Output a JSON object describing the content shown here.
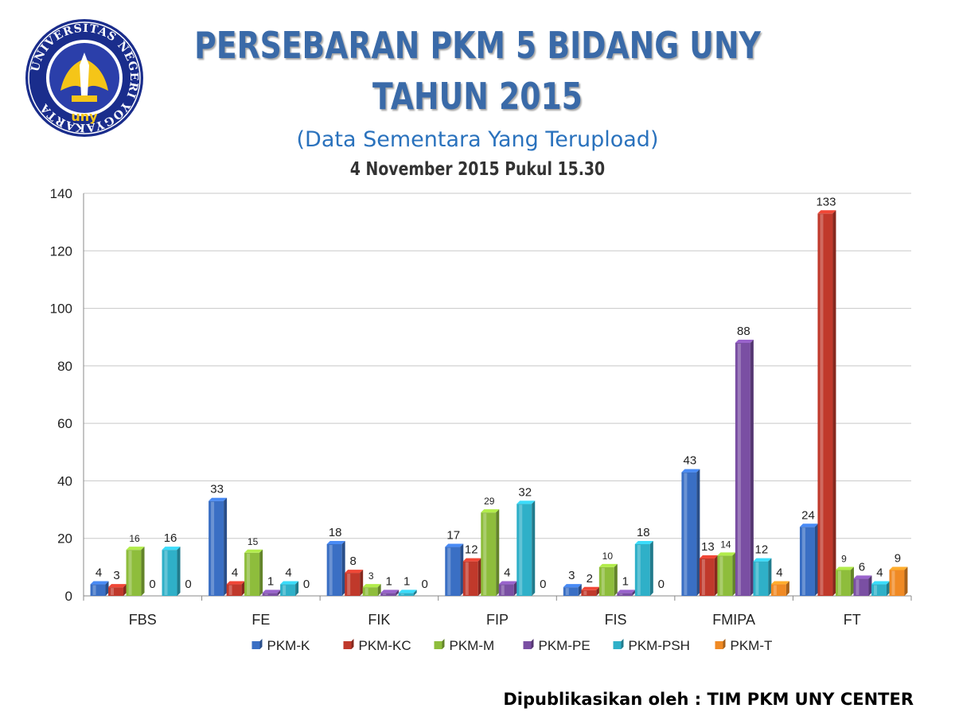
{
  "header": {
    "title_line1": "PERSEBARAN PKM 5 BIDANG UNY",
    "title_line2": "TAHUN 2015",
    "subtitle": "(Data Sementara Yang Terupload)",
    "datetime": "4 November  2015 Pukul 15.30"
  },
  "logo": {
    "ring_text": "UNIVERSITAS NEGERI YOGYAKARTA",
    "bottom_text": "uny",
    "colors": {
      "ring": "#1a2d8c",
      "inner": "#2b3faa",
      "wing": "#f5c518"
    }
  },
  "footer": {
    "text": "Dipublikasikan oleh : TIM PKM UNY CENTER"
  },
  "chart_data": {
    "type": "bar",
    "title": "",
    "xlabel": "",
    "ylabel": "",
    "ylim": [
      0,
      140
    ],
    "yticks": [
      0,
      20,
      40,
      60,
      80,
      100,
      120,
      140
    ],
    "grid": true,
    "legend": "bottom",
    "categories": [
      "FBS",
      "FE",
      "FIK",
      "FIP",
      "FIS",
      "FMIPA",
      "FT"
    ],
    "series": [
      {
        "name": "PKM-K",
        "color": "#3a6fc4",
        "values": [
          4,
          33,
          18,
          17,
          3,
          43,
          24
        ]
      },
      {
        "name": "PKM-KC",
        "color": "#c0392b",
        "values": [
          3,
          4,
          8,
          12,
          2,
          13,
          133
        ]
      },
      {
        "name": "PKM-M",
        "color": "#8ebd3c",
        "values": [
          16,
          15,
          3,
          29,
          10,
          14,
          9
        ]
      },
      {
        "name": "PKM-PE",
        "color": "#7a4fa3",
        "values": [
          0,
          1,
          1,
          4,
          1,
          88,
          6
        ]
      },
      {
        "name": "PKM-PSH",
        "color": "#2fb0c8",
        "values": [
          16,
          4,
          1,
          32,
          18,
          12,
          4
        ]
      },
      {
        "name": "PKM-T",
        "color": "#f08a24",
        "values": [
          0,
          0,
          0,
          0,
          0,
          4,
          9
        ]
      }
    ]
  }
}
